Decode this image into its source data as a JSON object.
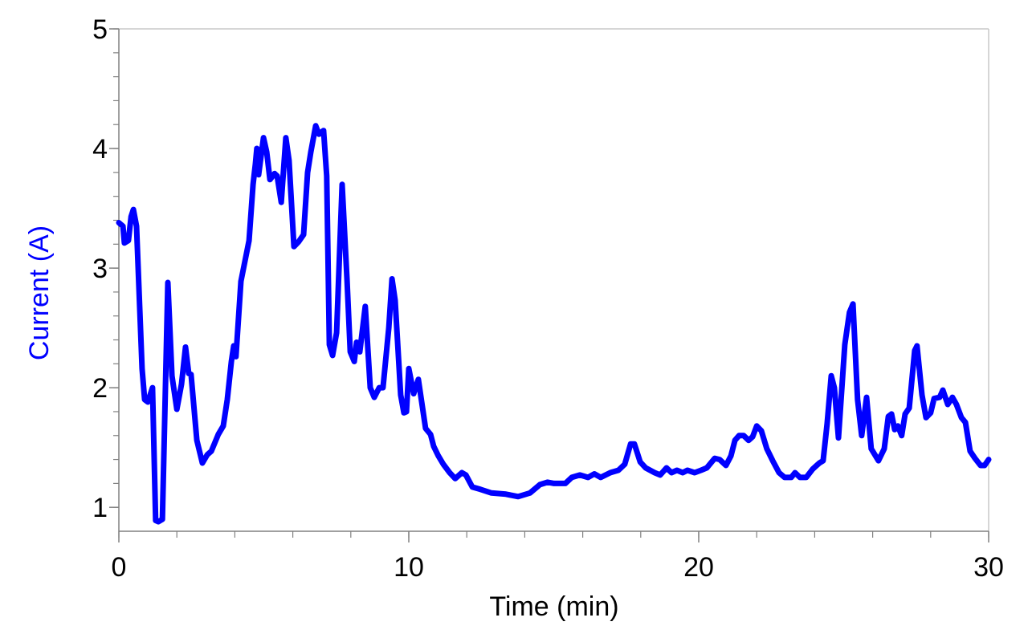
{
  "chart_data": {
    "type": "line",
    "title": "",
    "xlabel": "Time (min)",
    "ylabel": "Current (A)",
    "xlim": [
      0,
      30
    ],
    "ylim": [
      0.8,
      5
    ],
    "x_ticks": [
      0,
      10,
      20,
      30
    ],
    "x_tick_labels": [
      "0",
      "10",
      "20",
      "30"
    ],
    "x_minor_step": 2,
    "y_ticks": [
      1,
      2,
      3,
      4,
      5
    ],
    "y_tick_labels": [
      "1",
      "2",
      "3",
      "4",
      "5"
    ],
    "y_minor_step": 0.2,
    "grid": false,
    "colors": {
      "series": "#0000ff",
      "ylabel": "#0000ff",
      "axis": "#808080",
      "frame": "#c8c8c8"
    },
    "series": [
      {
        "name": "Current",
        "x": [
          0,
          0.14,
          0.19,
          0.33,
          0.42,
          0.5,
          0.61,
          0.8,
          0.89,
          1.0,
          1.16,
          1.27,
          1.36,
          1.5,
          1.69,
          1.83,
          2.0,
          2.16,
          2.3,
          2.41,
          2.49,
          2.69,
          2.88,
          3.05,
          3.19,
          3.43,
          3.6,
          3.74,
          3.88,
          3.96,
          4.04,
          4.21,
          4.49,
          4.63,
          4.71,
          4.76,
          4.82,
          4.99,
          5.1,
          5.21,
          5.37,
          5.46,
          5.6,
          5.76,
          5.87,
          6.04,
          6.2,
          6.37,
          6.51,
          6.62,
          6.79,
          6.9,
          7.06,
          7.17,
          7.26,
          7.37,
          7.51,
          7.7,
          7.87,
          7.98,
          8.12,
          8.2,
          8.31,
          8.5,
          8.67,
          8.81,
          8.98,
          9.11,
          9.31,
          9.42,
          9.53,
          9.72,
          9.83,
          9.92,
          10.0,
          10.17,
          10.33,
          10.58,
          10.75,
          10.86,
          11.02,
          11.19,
          11.41,
          11.6,
          11.83,
          11.97,
          12.19,
          12.47,
          12.85,
          13.35,
          13.77,
          14.18,
          14.52,
          14.79,
          15.01,
          15.4,
          15.62,
          15.9,
          16.18,
          16.4,
          16.62,
          16.95,
          17.23,
          17.45,
          17.65,
          17.78,
          17.98,
          18.17,
          18.48,
          18.67,
          18.89,
          19.06,
          19.25,
          19.45,
          19.61,
          19.86,
          20.08,
          20.28,
          20.55,
          20.72,
          20.94,
          21.11,
          21.25,
          21.39,
          21.55,
          21.72,
          21.86,
          22.0,
          22.16,
          22.35,
          22.55,
          22.77,
          22.96,
          23.19,
          23.32,
          23.49,
          23.71,
          23.93,
          24.16,
          24.29,
          24.43,
          24.57,
          24.68,
          24.82,
          25.04,
          25.2,
          25.32,
          25.48,
          25.62,
          25.79,
          25.95,
          26.2,
          26.4,
          26.54,
          26.65,
          26.76,
          26.87,
          27.0,
          27.12,
          27.26,
          27.45,
          27.53,
          27.7,
          27.84,
          28.0,
          28.12,
          28.31,
          28.42,
          28.59,
          28.75,
          28.89,
          29.06,
          29.2,
          29.36,
          29.53,
          29.72,
          29.86,
          30.0
        ],
        "y": [
          3.38,
          3.35,
          3.21,
          3.23,
          3.43,
          3.49,
          3.35,
          2.16,
          1.9,
          1.88,
          2.0,
          0.89,
          0.88,
          0.9,
          2.88,
          2.1,
          1.82,
          2.03,
          2.34,
          2.12,
          2.11,
          1.56,
          1.37,
          1.44,
          1.47,
          1.61,
          1.68,
          1.9,
          2.22,
          2.35,
          2.26,
          2.89,
          3.23,
          3.7,
          3.87,
          4.0,
          3.78,
          4.09,
          3.97,
          3.74,
          3.79,
          3.77,
          3.55,
          4.09,
          3.9,
          3.18,
          3.22,
          3.28,
          3.8,
          3.97,
          4.19,
          4.12,
          4.15,
          3.77,
          2.36,
          2.27,
          2.46,
          3.7,
          2.9,
          2.3,
          2.22,
          2.38,
          2.3,
          2.68,
          2.0,
          1.92,
          2.0,
          2.0,
          2.5,
          2.91,
          2.73,
          1.94,
          1.79,
          1.8,
          2.16,
          1.95,
          2.07,
          1.66,
          1.61,
          1.51,
          1.43,
          1.36,
          1.29,
          1.24,
          1.29,
          1.27,
          1.17,
          1.15,
          1.12,
          1.11,
          1.09,
          1.12,
          1.19,
          1.21,
          1.2,
          1.2,
          1.25,
          1.27,
          1.25,
          1.28,
          1.25,
          1.29,
          1.31,
          1.36,
          1.53,
          1.53,
          1.38,
          1.33,
          1.29,
          1.27,
          1.33,
          1.29,
          1.31,
          1.29,
          1.31,
          1.29,
          1.31,
          1.33,
          1.41,
          1.4,
          1.35,
          1.43,
          1.56,
          1.6,
          1.6,
          1.56,
          1.59,
          1.68,
          1.64,
          1.49,
          1.39,
          1.29,
          1.25,
          1.25,
          1.29,
          1.25,
          1.25,
          1.32,
          1.37,
          1.39,
          1.7,
          2.1,
          2.0,
          1.58,
          2.36,
          2.63,
          2.7,
          1.9,
          1.6,
          1.92,
          1.49,
          1.39,
          1.49,
          1.76,
          1.78,
          1.65,
          1.68,
          1.6,
          1.78,
          1.83,
          2.31,
          2.35,
          1.94,
          1.75,
          1.79,
          1.91,
          1.92,
          1.98,
          1.86,
          1.92,
          1.86,
          1.75,
          1.71,
          1.47,
          1.41,
          1.35,
          1.35,
          1.4
        ]
      }
    ],
    "legend": "none"
  }
}
